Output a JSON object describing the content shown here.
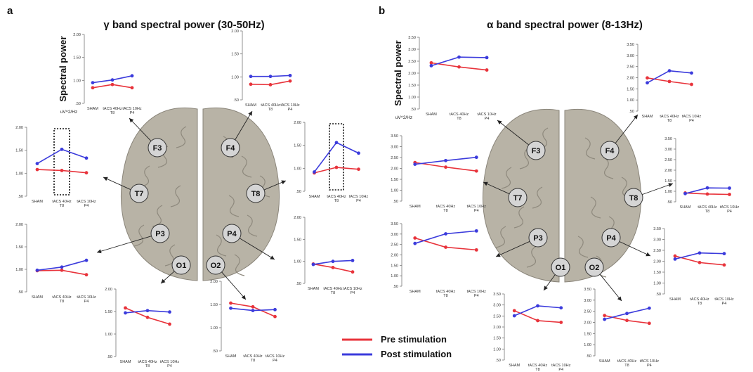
{
  "panels": [
    {
      "letter": "a",
      "title": "γ band spectral power (30-50Hz)"
    },
    {
      "letter": "b",
      "title": "α band spectral power (8-13Hz)"
    }
  ],
  "y_axis_label": "Spectral power",
  "y_unit": "uV^2/Hz",
  "categories": [
    {
      "line1": "SHAM",
      "line2": ""
    },
    {
      "line1": "tACS 40Hz",
      "line2": "T8"
    },
    {
      "line1": "tACS 10Hz",
      "line2": "P4"
    }
  ],
  "legend": [
    {
      "name": "Pre stimulation",
      "color": "#e8333b"
    },
    {
      "name": "Post stimulation",
      "color": "#3b3bdc"
    }
  ],
  "colors": {
    "pre": "#e8333b",
    "post": "#3b3bdc",
    "brain": "#b8b3a6",
    "electrode": "#d5d5d5"
  },
  "electrodes": [
    "F3",
    "F4",
    "T7",
    "T8",
    "P3",
    "P4",
    "O1",
    "O2"
  ],
  "chart_data": [
    {
      "type": "line",
      "panel": "a",
      "electrode": "F3",
      "categories": [
        "SHAM",
        "tACS 40Hz T8",
        "tACS 10Hz P4"
      ],
      "ylim": [
        0.5,
        2.0
      ],
      "yticks": [
        "2.00",
        "1.50",
        "1.00",
        ".50"
      ],
      "series": [
        {
          "name": "Pre stimulation",
          "values": [
            0.84,
            0.91,
            0.84
          ]
        },
        {
          "name": "Post stimulation",
          "values": [
            0.95,
            1.01,
            1.1
          ]
        }
      ]
    },
    {
      "type": "line",
      "panel": "a",
      "electrode": "F4",
      "categories": [
        "SHAM",
        "tACS 40Hz T8",
        "tACS 10Hz P4"
      ],
      "ylim": [
        0.5,
        2.0
      ],
      "yticks": [
        "2.00",
        "1.50",
        "1.00",
        ".50"
      ],
      "series": [
        {
          "name": "Pre stimulation",
          "values": [
            0.84,
            0.83,
            0.91
          ]
        },
        {
          "name": "Post stimulation",
          "values": [
            1.01,
            1.01,
            1.03
          ]
        }
      ]
    },
    {
      "type": "line",
      "panel": "a",
      "electrode": "T7",
      "categories": [
        "SHAM",
        "tACS 40Hz T8",
        "tACS 10Hz P4"
      ],
      "ylim": [
        0.5,
        2.0
      ],
      "yticks": [
        "2.00",
        "1.50",
        "1.00",
        ".50"
      ],
      "highlight": "tACS 40Hz T8",
      "series": [
        {
          "name": "Pre stimulation",
          "values": [
            1.08,
            1.06,
            1.01
          ]
        },
        {
          "name": "Post stimulation",
          "values": [
            1.21,
            1.52,
            1.33
          ]
        }
      ]
    },
    {
      "type": "line",
      "panel": "a",
      "electrode": "T8",
      "categories": [
        "SHAM",
        "tACS 40Hz T8",
        "tACS 10Hz P4"
      ],
      "ylim": [
        0.5,
        2.0
      ],
      "yticks": [
        "2.00",
        "1.50",
        "1.00",
        ".50"
      ],
      "highlight": "tACS 40Hz T8",
      "series": [
        {
          "name": "Pre stimulation",
          "values": [
            0.9,
            1.02,
            0.98
          ]
        },
        {
          "name": "Post stimulation",
          "values": [
            0.92,
            1.56,
            1.33
          ]
        }
      ]
    },
    {
      "type": "line",
      "panel": "a",
      "electrode": "P3",
      "categories": [
        "SHAM",
        "tACS 40Hz T8",
        "tACS 10Hz P4"
      ],
      "ylim": [
        0.5,
        2.0
      ],
      "yticks": [
        "2.00",
        "1.50",
        "1.00",
        ".50"
      ],
      "series": [
        {
          "name": "Pre stimulation",
          "values": [
            0.97,
            0.98,
            0.88
          ]
        },
        {
          "name": "Post stimulation",
          "values": [
            0.98,
            1.05,
            1.2
          ]
        }
      ]
    },
    {
      "type": "line",
      "panel": "a",
      "electrode": "P4",
      "categories": [
        "SHAM",
        "tACS 40Hz T8",
        "tACS 10Hz P4"
      ],
      "ylim": [
        0.5,
        2.0
      ],
      "yticks": [
        "2.00",
        "1.50",
        "1.00",
        ".50"
      ],
      "series": [
        {
          "name": "Pre stimulation",
          "values": [
            0.94,
            0.86,
            0.76
          ]
        },
        {
          "name": "Post stimulation",
          "values": [
            0.93,
            1.0,
            1.02
          ]
        }
      ]
    },
    {
      "type": "line",
      "panel": "a",
      "electrode": "O1",
      "categories": [
        "SHAM",
        "tACS 40Hz T8",
        "tACS 10Hz P4"
      ],
      "ylim": [
        0.5,
        2.0
      ],
      "yticks": [
        "2.00",
        "1.50",
        "1.00",
        ".50"
      ],
      "series": [
        {
          "name": "Pre stimulation",
          "values": [
            1.58,
            1.37,
            1.22
          ]
        },
        {
          "name": "Post stimulation",
          "values": [
            1.47,
            1.52,
            1.49
          ]
        }
      ]
    },
    {
      "type": "line",
      "panel": "a",
      "electrode": "O2",
      "categories": [
        "SHAM",
        "tACS 40Hz T8",
        "tACS 10Hz P4"
      ],
      "ylim": [
        0.5,
        2.0
      ],
      "yticks": [
        "2.00",
        "1.50",
        "1.00",
        ".50"
      ],
      "series": [
        {
          "name": "Pre stimulation",
          "values": [
            1.53,
            1.45,
            1.24
          ]
        },
        {
          "name": "Post stimulation",
          "values": [
            1.42,
            1.37,
            1.39
          ]
        }
      ]
    },
    {
      "type": "line",
      "panel": "b",
      "electrode": "F3",
      "categories": [
        "SHAM",
        "tACS 40Hz T8",
        "tACS 10Hz P4"
      ],
      "ylim": [
        0.5,
        3.5
      ],
      "yticks": [
        "3.50",
        "3.00",
        "2.50",
        "2.00",
        "1.50",
        "1.00",
        ".50"
      ],
      "series": [
        {
          "name": "Pre stimulation",
          "values": [
            2.43,
            2.26,
            2.13
          ]
        },
        {
          "name": "Post stimulation",
          "values": [
            2.31,
            2.67,
            2.65
          ]
        }
      ]
    },
    {
      "type": "line",
      "panel": "b",
      "electrode": "F4",
      "categories": [
        "SHAM",
        "tACS 40Hz T8",
        "tACS 10Hz P4"
      ],
      "ylim": [
        0.5,
        3.5
      ],
      "yticks": [
        "3.50",
        "3.00",
        "2.50",
        "2.00",
        "1.50",
        "1.00",
        ".50"
      ],
      "series": [
        {
          "name": "Pre stimulation",
          "values": [
            1.99,
            1.83,
            1.7
          ]
        },
        {
          "name": "Post stimulation",
          "values": [
            1.77,
            2.31,
            2.21
          ]
        }
      ]
    },
    {
      "type": "line",
      "panel": "b",
      "electrode": "T7",
      "categories": [
        "SHAM",
        "tACS 40Hz T8",
        "tACS 10Hz P4"
      ],
      "ylim": [
        0.5,
        3.5
      ],
      "yticks": [
        "3.50",
        "3.00",
        "2.50",
        "2.00",
        "1.50",
        "1.00",
        ".50"
      ],
      "series": [
        {
          "name": "Pre stimulation",
          "values": [
            2.27,
            2.06,
            1.88
          ]
        },
        {
          "name": "Post stimulation",
          "values": [
            2.19,
            2.36,
            2.51
          ]
        }
      ]
    },
    {
      "type": "line",
      "panel": "b",
      "electrode": "T8",
      "categories": [
        "SHAM",
        "tACS 40Hz T8",
        "tACS 10Hz P4"
      ],
      "ylim": [
        0.5,
        3.5
      ],
      "yticks": [
        "3.50",
        "3.00",
        "2.50",
        "2.00",
        "1.50",
        "1.00",
        ".50"
      ],
      "series": [
        {
          "name": "Pre stimulation",
          "values": [
            0.92,
            0.87,
            0.85
          ]
        },
        {
          "name": "Post stimulation",
          "values": [
            0.89,
            1.16,
            1.15
          ]
        }
      ]
    },
    {
      "type": "line",
      "panel": "b",
      "electrode": "P3",
      "categories": [
        "SHAM",
        "tACS 40Hz T8",
        "tACS 10Hz P4"
      ],
      "ylim": [
        0.5,
        3.5
      ],
      "yticks": [
        "3.50",
        "3.00",
        "2.50",
        "2.00",
        "1.50",
        "1.00",
        ".50"
      ],
      "series": [
        {
          "name": "Pre stimulation",
          "values": [
            2.81,
            2.37,
            2.24
          ]
        },
        {
          "name": "Post stimulation",
          "values": [
            2.55,
            3.01,
            3.15
          ]
        }
      ]
    },
    {
      "type": "line",
      "panel": "b",
      "electrode": "P4",
      "categories": [
        "SHAM",
        "tACS 40Hz T8",
        "tACS 10Hz P4"
      ],
      "ylim": [
        0.5,
        3.5
      ],
      "yticks": [
        "3.50",
        "3.00",
        "2.50",
        "2.00",
        "1.50",
        "1.00",
        ".50"
      ],
      "series": [
        {
          "name": "Pre stimulation",
          "values": [
            2.24,
            1.94,
            1.83
          ]
        },
        {
          "name": "Post stimulation",
          "values": [
            2.1,
            2.38,
            2.35
          ]
        }
      ]
    },
    {
      "type": "line",
      "panel": "b",
      "electrode": "O1",
      "categories": [
        "SHAM",
        "tACS 40Hz T8",
        "tACS 10Hz P4"
      ],
      "ylim": [
        0.5,
        3.5
      ],
      "yticks": [
        "3.50",
        "3.00",
        "2.50",
        "2.00",
        "1.50",
        "1.00",
        ".50"
      ],
      "series": [
        {
          "name": "Pre stimulation",
          "values": [
            2.74,
            2.29,
            2.21
          ]
        },
        {
          "name": "Post stimulation",
          "values": [
            2.51,
            2.96,
            2.87
          ]
        }
      ]
    },
    {
      "type": "line",
      "panel": "b",
      "electrode": "O2",
      "categories": [
        "SHAM",
        "tACS 40Hz T8",
        "tACS 10Hz P4"
      ],
      "ylim": [
        0.5,
        3.5
      ],
      "yticks": [
        "3.50",
        "3.00",
        "2.50",
        "2.00",
        "1.50",
        "1.00",
        ".50"
      ],
      "series": [
        {
          "name": "Pre stimulation",
          "values": [
            2.31,
            2.09,
            1.96
          ]
        },
        {
          "name": "Post stimulation",
          "values": [
            2.14,
            2.4,
            2.64
          ]
        }
      ]
    }
  ]
}
